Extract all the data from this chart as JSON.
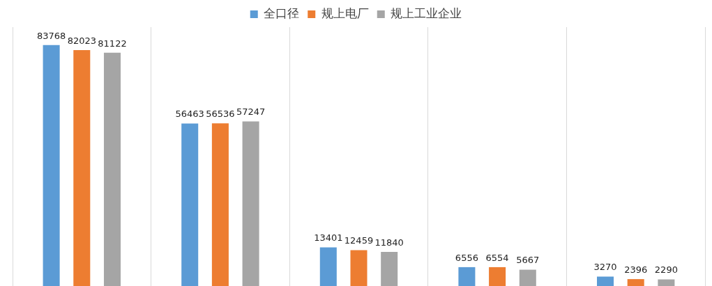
{
  "chart_data": {
    "type": "bar",
    "categories": [
      null,
      null,
      null,
      null,
      null
    ],
    "series": [
      {
        "name": "全口径",
        "color": "#5b9bd5",
        "values": [
          83768,
          56463,
          13401,
          6556,
          3270
        ]
      },
      {
        "name": "规上电厂",
        "color": "#ed7d31",
        "values": [
          82023,
          56536,
          12459,
          6554,
          2396
        ]
      },
      {
        "name": "规上工业企业",
        "color": "#a5a5a5",
        "values": [
          81122,
          57247,
          11840,
          5667,
          2290
        ]
      }
    ],
    "data_labels": true,
    "grid": "x",
    "legend": "top",
    "tick_labels": false
  }
}
